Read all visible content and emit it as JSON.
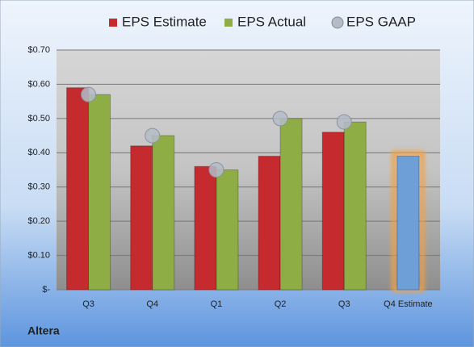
{
  "chart_data": {
    "type": "bar",
    "company": "Altera",
    "categories": [
      "Q3",
      "Q4",
      "Q1",
      "Q2",
      "Q3",
      "Q4 Estimate"
    ],
    "series": [
      {
        "name": "EPS Estimate",
        "color": "#c42a2e",
        "values": [
          0.59,
          0.42,
          0.36,
          0.39,
          0.46,
          0.39
        ],
        "highlight_color": "#6e9fd6",
        "kind": "bar"
      },
      {
        "name": "EPS Actual",
        "color": "#8fad45",
        "values": [
          0.57,
          0.45,
          0.35,
          0.5,
          0.49,
          null
        ],
        "kind": "bar"
      },
      {
        "name": "EPS GAAP",
        "color": "#b4bcc8",
        "values": [
          0.57,
          0.45,
          0.35,
          0.5,
          0.49,
          null
        ],
        "kind": "marker"
      }
    ],
    "ylim": [
      0,
      0.7
    ],
    "yticks": [
      {
        "value": 0,
        "label": "$-"
      },
      {
        "value": 0.1,
        "label": "$0.10"
      },
      {
        "value": 0.2,
        "label": "$0.20"
      },
      {
        "value": 0.3,
        "label": "$0.30"
      },
      {
        "value": 0.4,
        "label": "$0.40"
      },
      {
        "value": 0.5,
        "label": "$0.50"
      },
      {
        "value": 0.6,
        "label": "$0.60"
      },
      {
        "value": 0.7,
        "label": "$0.70"
      }
    ],
    "grid": true,
    "legend": "top"
  }
}
